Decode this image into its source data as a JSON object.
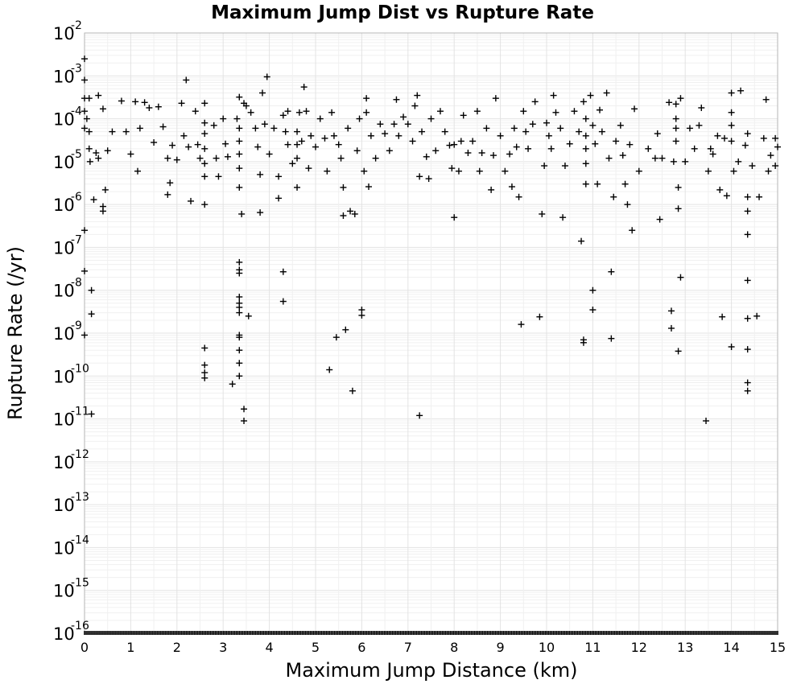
{
  "chart_data": {
    "type": "scatter",
    "marker": "plus",
    "title": "Maximum Jump Dist vs Rupture Rate",
    "xlabel": "Maximum Jump Distance (km)",
    "ylabel": "Rupture Rate (/yr)",
    "xlim": [
      0,
      15
    ],
    "ylim": [
      1e-16,
      0.01
    ],
    "y_scale": "log",
    "grid": true,
    "x_ticks": [
      "0",
      "1",
      "2",
      "3",
      "4",
      "5",
      "6",
      "7",
      "8",
      "9",
      "10",
      "11",
      "12",
      "13",
      "14",
      "15"
    ],
    "y_ticks": [
      {
        "base": "10",
        "exp": "-2"
      },
      {
        "base": "10",
        "exp": "-3"
      },
      {
        "base": "10",
        "exp": "-4"
      },
      {
        "base": "10",
        "exp": "-5"
      },
      {
        "base": "10",
        "exp": "-6"
      },
      {
        "base": "10",
        "exp": "-7"
      },
      {
        "base": "10",
        "exp": "-8"
      },
      {
        "base": "10",
        "exp": "-9"
      },
      {
        "base": "10",
        "exp": "-10"
      },
      {
        "base": "10",
        "exp": "-11"
      },
      {
        "base": "10",
        "exp": "-12"
      },
      {
        "base": "10",
        "exp": "-13"
      },
      {
        "base": "10",
        "exp": "-14"
      },
      {
        "base": "10",
        "exp": "-15"
      },
      {
        "base": "10",
        "exp": "-16"
      }
    ],
    "points": [
      [
        0.0,
        0.0025
      ],
      [
        0.0,
        0.0008
      ],
      [
        0.0,
        0.0003
      ],
      [
        0.0,
        0.00015
      ],
      [
        0.0,
        6e-05
      ],
      [
        0.0,
        2.5e-07
      ],
      [
        0.0,
        2.8e-08
      ],
      [
        0.0,
        9e-10
      ],
      [
        0.05,
        0.0001
      ],
      [
        0.1,
        0.0003
      ],
      [
        0.1,
        5e-05
      ],
      [
        0.1,
        2e-05
      ],
      [
        0.12,
        1e-05
      ],
      [
        0.15,
        1e-08
      ],
      [
        0.15,
        2.8e-09
      ],
      [
        0.15,
        1.3e-11
      ],
      [
        0.2,
        1.3e-06
      ],
      [
        0.25,
        1.6e-05
      ],
      [
        0.3,
        0.00035
      ],
      [
        0.3,
        1.2e-05
      ],
      [
        0.4,
        0.00017
      ],
      [
        0.45,
        2.2e-06
      ],
      [
        0.4,
        9e-07
      ],
      [
        0.4,
        7e-07
      ],
      [
        0.5,
        1.8e-05
      ],
      [
        0.6,
        5e-05
      ],
      [
        0.8,
        0.00026
      ],
      [
        0.9,
        5e-05
      ],
      [
        1.0,
        1.5e-05
      ],
      [
        1.1,
        0.00025
      ],
      [
        1.15,
        6e-06
      ],
      [
        1.2,
        6e-05
      ],
      [
        1.3,
        0.00024
      ],
      [
        1.4,
        0.00018
      ],
      [
        1.5,
        2.8e-05
      ],
      [
        1.6,
        0.00019
      ],
      [
        1.7,
        6.5e-05
      ],
      [
        1.8,
        1.2e-05
      ],
      [
        1.8,
        1.7e-06
      ],
      [
        1.85,
        3.2e-06
      ],
      [
        1.9,
        2.4e-05
      ],
      [
        2.0,
        1.1e-05
      ],
      [
        2.1,
        0.00023
      ],
      [
        2.15,
        4e-05
      ],
      [
        2.2,
        0.0008
      ],
      [
        2.25,
        2.2e-05
      ],
      [
        2.3,
        1.2e-06
      ],
      [
        2.4,
        0.00015
      ],
      [
        2.45,
        2.5e-05
      ],
      [
        2.5,
        1.2e-05
      ],
      [
        2.6,
        0.00023
      ],
      [
        2.6,
        8e-05
      ],
      [
        2.6,
        4.5e-05
      ],
      [
        2.6,
        2e-05
      ],
      [
        2.6,
        9e-06
      ],
      [
        2.6,
        4.5e-06
      ],
      [
        2.6,
        1e-06
      ],
      [
        2.6,
        4.5e-10
      ],
      [
        2.6,
        1.8e-10
      ],
      [
        2.6,
        1.2e-10
      ],
      [
        2.6,
        9e-11
      ],
      [
        2.8,
        7e-05
      ],
      [
        2.85,
        1.2e-05
      ],
      [
        2.9,
        4.5e-06
      ],
      [
        3.0,
        0.0001
      ],
      [
        3.05,
        2.6e-05
      ],
      [
        3.1,
        1.3e-05
      ],
      [
        3.2,
        6.5e-11
      ],
      [
        3.3,
        0.0001
      ],
      [
        3.35,
        0.00032
      ],
      [
        3.35,
        6e-05
      ],
      [
        3.35,
        3e-05
      ],
      [
        3.35,
        1.5e-05
      ],
      [
        3.35,
        7e-06
      ],
      [
        3.35,
        2.5e-06
      ],
      [
        3.35,
        4.5e-08
      ],
      [
        3.35,
        3e-08
      ],
      [
        3.35,
        2.5e-08
      ],
      [
        3.35,
        7e-09
      ],
      [
        3.35,
        5e-09
      ],
      [
        3.35,
        4e-09
      ],
      [
        3.35,
        3e-09
      ],
      [
        3.35,
        9e-10
      ],
      [
        3.35,
        8e-10
      ],
      [
        3.35,
        4e-10
      ],
      [
        3.35,
        2e-10
      ],
      [
        3.35,
        1e-10
      ],
      [
        3.4,
        6e-07
      ],
      [
        3.45,
        0.00023
      ],
      [
        3.45,
        1.7e-11
      ],
      [
        3.45,
        9e-12
      ],
      [
        3.5,
        0.0002
      ],
      [
        3.55,
        2.5e-09
      ],
      [
        3.6,
        0.00014
      ],
      [
        3.7,
        6e-05
      ],
      [
        3.75,
        2.2e-05
      ],
      [
        3.8,
        6.5e-07
      ],
      [
        3.8,
        5e-06
      ],
      [
        3.85,
        0.0004
      ],
      [
        3.9,
        7.5e-05
      ],
      [
        3.95,
        0.00095
      ],
      [
        4.0,
        1.5e-05
      ],
      [
        4.1,
        6e-05
      ],
      [
        4.2,
        4.5e-06
      ],
      [
        4.2,
        1.4e-06
      ],
      [
        4.3,
        2.7e-08
      ],
      [
        4.3,
        5.5e-09
      ],
      [
        4.3,
        0.00012
      ],
      [
        4.35,
        5e-05
      ],
      [
        4.4,
        0.00015
      ],
      [
        4.4,
        2.5e-05
      ],
      [
        4.5,
        9e-06
      ],
      [
        4.6,
        5e-05
      ],
      [
        4.6,
        2.5e-05
      ],
      [
        4.6,
        1.2e-05
      ],
      [
        4.6,
        2.5e-06
      ],
      [
        4.65,
        0.00014
      ],
      [
        4.7,
        3e-05
      ],
      [
        4.75,
        0.00055
      ],
      [
        4.8,
        0.00015
      ],
      [
        4.85,
        7e-06
      ],
      [
        4.9,
        4e-05
      ],
      [
        5.0,
        2.2e-05
      ],
      [
        5.1,
        0.0001
      ],
      [
        5.2,
        3.5e-05
      ],
      [
        5.25,
        6e-06
      ],
      [
        5.3,
        1.4e-10
      ],
      [
        5.35,
        0.00014
      ],
      [
        5.4,
        4e-05
      ],
      [
        5.45,
        8e-10
      ],
      [
        5.5,
        2.5e-05
      ],
      [
        5.55,
        1.2e-05
      ],
      [
        5.6,
        2.5e-06
      ],
      [
        5.6,
        5.5e-07
      ],
      [
        5.65,
        1.2e-09
      ],
      [
        5.7,
        6e-05
      ],
      [
        5.75,
        7e-07
      ],
      [
        5.8,
        4.5e-11
      ],
      [
        5.85,
        6e-07
      ],
      [
        5.9,
        1.8e-05
      ],
      [
        5.95,
        0.0001
      ],
      [
        6.0,
        3.5e-09
      ],
      [
        6.0,
        2.6e-09
      ],
      [
        6.05,
        6e-06
      ],
      [
        6.1,
        0.0003
      ],
      [
        6.1,
        0.00014
      ],
      [
        6.15,
        2.6e-06
      ],
      [
        6.2,
        4e-05
      ],
      [
        6.3,
        1.2e-05
      ],
      [
        6.4,
        7.5e-05
      ],
      [
        6.5,
        4.5e-05
      ],
      [
        6.6,
        1.8e-05
      ],
      [
        6.7,
        7.5e-05
      ],
      [
        6.75,
        0.00028
      ],
      [
        6.8,
        4e-05
      ],
      [
        6.9,
        0.00011
      ],
      [
        7.0,
        7.5e-05
      ],
      [
        7.1,
        3e-05
      ],
      [
        7.15,
        0.0002
      ],
      [
        7.2,
        0.00035
      ],
      [
        7.25,
        4.5e-06
      ],
      [
        7.25,
        1.2e-11
      ],
      [
        7.3,
        5e-05
      ],
      [
        7.4,
        1.3e-05
      ],
      [
        7.45,
        4e-06
      ],
      [
        7.5,
        0.0001
      ],
      [
        7.6,
        1.8e-05
      ],
      [
        7.7,
        0.00015
      ],
      [
        7.8,
        5e-05
      ],
      [
        7.9,
        2.4e-05
      ],
      [
        7.95,
        7e-06
      ],
      [
        8.0,
        5e-07
      ],
      [
        8.0,
        2.5e-05
      ],
      [
        8.1,
        6e-06
      ],
      [
        8.15,
        3e-05
      ],
      [
        8.2,
        0.00012
      ],
      [
        8.3,
        1.6e-05
      ],
      [
        8.4,
        3e-05
      ],
      [
        8.5,
        0.00015
      ],
      [
        8.55,
        6e-06
      ],
      [
        8.6,
        1.6e-05
      ],
      [
        8.7,
        6e-05
      ],
      [
        8.8,
        2.2e-06
      ],
      [
        8.85,
        1.4e-05
      ],
      [
        8.9,
        0.0003
      ],
      [
        9.0,
        4e-05
      ],
      [
        9.1,
        6e-06
      ],
      [
        9.2,
        1.5e-05
      ],
      [
        9.25,
        2.6e-06
      ],
      [
        9.3,
        6e-05
      ],
      [
        9.35,
        2.2e-05
      ],
      [
        9.4,
        1.5e-06
      ],
      [
        9.45,
        1.6e-09
      ],
      [
        9.5,
        0.00015
      ],
      [
        9.55,
        5e-05
      ],
      [
        9.6,
        2e-05
      ],
      [
        9.7,
        7.5e-05
      ],
      [
        9.75,
        0.00025
      ],
      [
        9.85,
        2.4e-09
      ],
      [
        9.9,
        6e-07
      ],
      [
        9.95,
        8e-06
      ],
      [
        10.0,
        8e-05
      ],
      [
        10.05,
        4e-05
      ],
      [
        10.1,
        2e-05
      ],
      [
        10.15,
        0.00035
      ],
      [
        10.2,
        0.00014
      ],
      [
        10.3,
        6e-05
      ],
      [
        10.35,
        5e-07
      ],
      [
        10.4,
        8e-06
      ],
      [
        10.5,
        2.6e-05
      ],
      [
        10.6,
        0.00015
      ],
      [
        10.7,
        5e-05
      ],
      [
        10.75,
        1.4e-07
      ],
      [
        10.8,
        0.00025
      ],
      [
        10.8,
        7e-10
      ],
      [
        10.8,
        6e-10
      ],
      [
        10.85,
        0.0001
      ],
      [
        10.85,
        4e-05
      ],
      [
        10.85,
        2e-05
      ],
      [
        10.85,
        9e-06
      ],
      [
        10.85,
        3e-06
      ],
      [
        10.95,
        0.00035
      ],
      [
        11.0,
        7e-05
      ],
      [
        11.0,
        1e-08
      ],
      [
        11.0,
        3.5e-09
      ],
      [
        11.05,
        2.6e-05
      ],
      [
        11.1,
        3e-06
      ],
      [
        11.15,
        0.00016
      ],
      [
        11.2,
        5e-05
      ],
      [
        11.3,
        0.0004
      ],
      [
        11.35,
        1.2e-05
      ],
      [
        11.4,
        2.7e-08
      ],
      [
        11.4,
        7.5e-10
      ],
      [
        11.45,
        1.5e-06
      ],
      [
        11.5,
        3e-05
      ],
      [
        11.6,
        7e-05
      ],
      [
        11.65,
        1.4e-05
      ],
      [
        11.7,
        3e-06
      ],
      [
        11.75,
        1e-06
      ],
      [
        11.8,
        2.5e-05
      ],
      [
        11.85,
        2.5e-07
      ],
      [
        11.9,
        0.00017
      ],
      [
        12.0,
        6e-06
      ],
      [
        12.2,
        2e-05
      ],
      [
        12.35,
        1.2e-05
      ],
      [
        12.4,
        4.5e-05
      ],
      [
        12.45,
        4.5e-07
      ],
      [
        12.5,
        1.2e-05
      ],
      [
        12.65,
        0.00024
      ],
      [
        12.7,
        3.3e-09
      ],
      [
        12.7,
        1.3e-09
      ],
      [
        12.75,
        1e-05
      ],
      [
        12.8,
        0.00022
      ],
      [
        12.8,
        0.0001
      ],
      [
        12.8,
        6e-05
      ],
      [
        12.8,
        3e-05
      ],
      [
        12.85,
        2.5e-06
      ],
      [
        12.85,
        8e-07
      ],
      [
        12.85,
        3.8e-10
      ],
      [
        12.9,
        2e-08
      ],
      [
        12.9,
        0.0003
      ],
      [
        13.0,
        1e-05
      ],
      [
        13.1,
        6e-05
      ],
      [
        13.2,
        2e-05
      ],
      [
        13.3,
        7e-05
      ],
      [
        13.35,
        0.00018
      ],
      [
        13.45,
        9e-12
      ],
      [
        13.5,
        6e-06
      ],
      [
        13.55,
        2e-05
      ],
      [
        13.6,
        1.5e-05
      ],
      [
        13.7,
        4e-05
      ],
      [
        13.75,
        2.2e-06
      ],
      [
        13.8,
        2.4e-09
      ],
      [
        13.85,
        3.5e-05
      ],
      [
        13.9,
        1.6e-06
      ],
      [
        14.0,
        0.0004
      ],
      [
        14.0,
        0.00014
      ],
      [
        14.0,
        7e-05
      ],
      [
        14.0,
        3e-05
      ],
      [
        14.0,
        4.8e-10
      ],
      [
        14.05,
        6e-06
      ],
      [
        14.15,
        1e-05
      ],
      [
        14.2,
        0.00045
      ],
      [
        14.3,
        2.4e-05
      ],
      [
        14.35,
        4.5e-05
      ],
      [
        14.35,
        1.5e-06
      ],
      [
        14.35,
        7e-07
      ],
      [
        14.35,
        2e-07
      ],
      [
        14.35,
        1.7e-08
      ],
      [
        14.35,
        2.2e-09
      ],
      [
        14.35,
        4.2e-10
      ],
      [
        14.35,
        7e-11
      ],
      [
        14.35,
        4.5e-11
      ],
      [
        14.45,
        8e-06
      ],
      [
        14.55,
        2.5e-09
      ],
      [
        14.6,
        1.5e-06
      ],
      [
        14.7,
        3.5e-05
      ],
      [
        14.75,
        0.00028
      ],
      [
        14.8,
        6e-06
      ],
      [
        14.85,
        1.4e-05
      ],
      [
        14.95,
        3.5e-05
      ],
      [
        15.0,
        2.2e-05
      ],
      [
        14.95,
        8e-06
      ]
    ]
  }
}
